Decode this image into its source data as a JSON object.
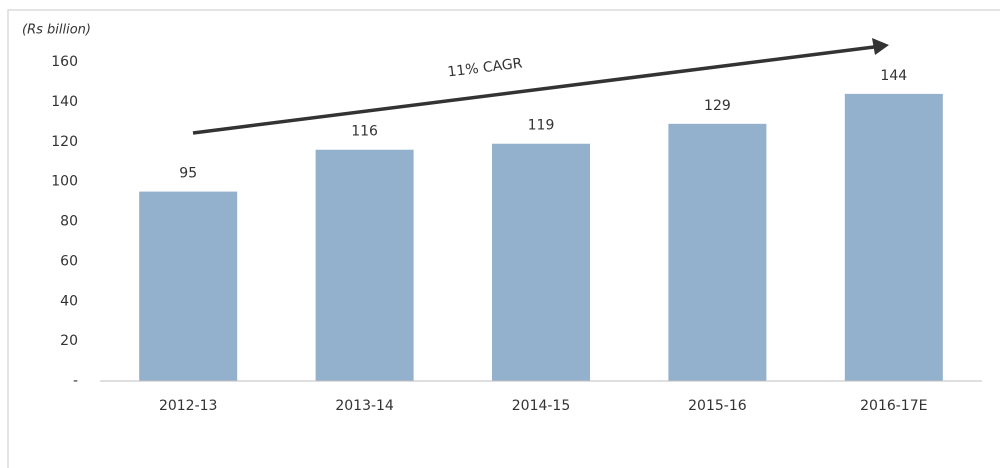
{
  "chart_data": {
    "type": "bar",
    "unit_label": "(Rs billion)",
    "annotation": "11% CAGR",
    "categories": [
      "2012-13",
      "2013-14",
      "2014-15",
      "2015-16",
      "2016-17E"
    ],
    "values": [
      95,
      116,
      119,
      129,
      144
    ],
    "color": "#93b1cc",
    "ylim": [
      0,
      160
    ],
    "yticks": [
      {
        "value": 0,
        "label": "-"
      },
      20,
      40,
      60,
      80,
      100,
      120,
      140,
      160
    ],
    "grid": false
  }
}
